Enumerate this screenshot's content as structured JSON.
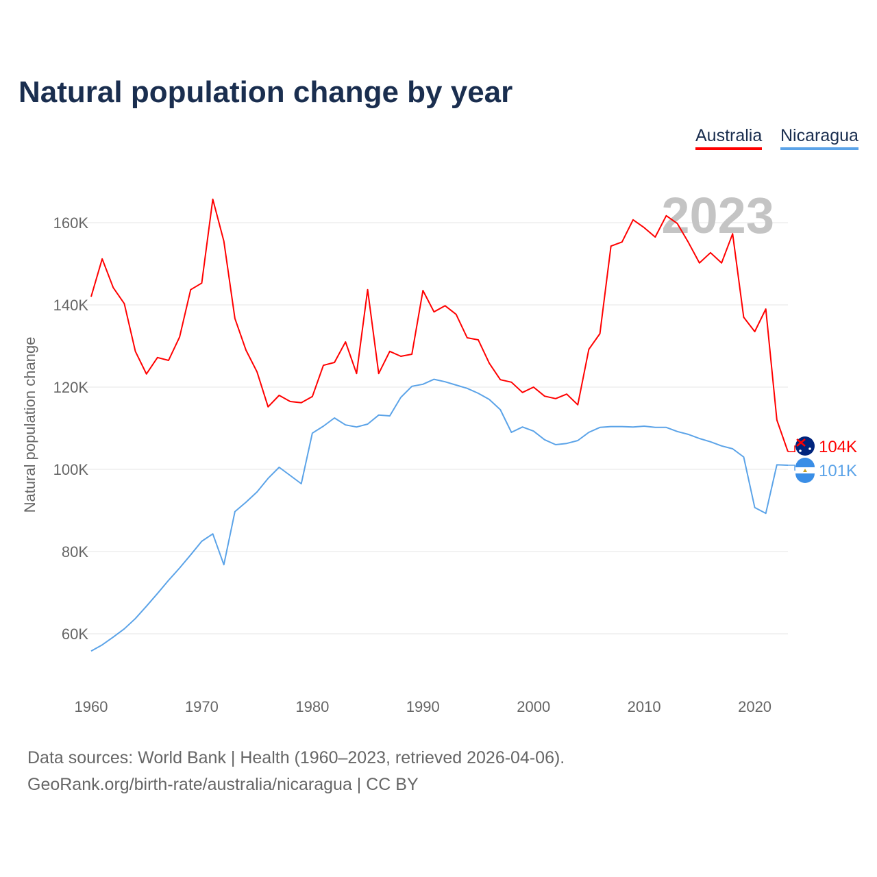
{
  "chart_data": {
    "type": "line",
    "title": "Natural population change by year",
    "xlabel": "",
    "ylabel": "Natural population change",
    "xlim": [
      1960,
      2023
    ],
    "ylim": [
      50000,
      170000
    ],
    "x_ticks": [
      "1960",
      "1970",
      "1980",
      "1990",
      "2000",
      "2010",
      "2020"
    ],
    "y_ticks": [
      {
        "v": 60000,
        "label": "60K"
      },
      {
        "v": 80000,
        "label": "80K"
      },
      {
        "v": 100000,
        "label": "100K"
      },
      {
        "v": 120000,
        "label": "120K"
      },
      {
        "v": 140000,
        "label": "140K"
      },
      {
        "v": 160000,
        "label": "160K"
      }
    ],
    "grid": true,
    "legend_placement": "top-right",
    "year_watermark": "2023",
    "x": [
      1960,
      1961,
      1962,
      1963,
      1964,
      1965,
      1966,
      1967,
      1968,
      1969,
      1970,
      1971,
      1972,
      1973,
      1974,
      1975,
      1976,
      1977,
      1978,
      1979,
      1980,
      1981,
      1982,
      1983,
      1984,
      1985,
      1986,
      1987,
      1988,
      1989,
      1990,
      1991,
      1992,
      1993,
      1994,
      1995,
      1996,
      1997,
      1998,
      1999,
      2000,
      2001,
      2002,
      2003,
      2004,
      2005,
      2006,
      2007,
      2008,
      2009,
      2010,
      2011,
      2012,
      2013,
      2014,
      2015,
      2016,
      2017,
      2018,
      2019,
      2020,
      2021,
      2022,
      2023
    ],
    "series": [
      {
        "name": "Australia",
        "color": "#ff0000",
        "end_label": "104K",
        "values": [
          142000,
          151200,
          144200,
          140300,
          128700,
          123200,
          127200,
          126500,
          132200,
          143700,
          145300,
          165700,
          155500,
          136700,
          129000,
          123700,
          115200,
          118000,
          116500,
          116200,
          117700,
          125300,
          126000,
          131000,
          123300,
          143700,
          123300,
          128700,
          127500,
          128000,
          143500,
          138300,
          139800,
          137700,
          132000,
          131500,
          125800,
          121800,
          121200,
          118700,
          120000,
          117800,
          117200,
          118300,
          115700,
          129200,
          133000,
          154300,
          155300,
          160700,
          158800,
          156500,
          161700,
          159800,
          155200,
          150200,
          152700,
          150200,
          157300,
          137000,
          133500,
          139000,
          112000,
          104300
        ]
      },
      {
        "name": "Nicaragua",
        "color": "#5ba3e8",
        "end_label": "101K",
        "values": [
          55800,
          57300,
          59200,
          61200,
          63700,
          66700,
          69800,
          73000,
          76000,
          79200,
          82500,
          84300,
          76800,
          89700,
          92000,
          94500,
          97800,
          100500,
          98500,
          96500,
          108800,
          110500,
          112500,
          110800,
          110300,
          111000,
          113200,
          113000,
          117500,
          120200,
          120700,
          121900,
          121300,
          120500,
          119700,
          118500,
          117000,
          114500,
          109000,
          110300,
          109300,
          107200,
          106000,
          106300,
          107000,
          109000,
          110200,
          110400,
          110400,
          110300,
          110500,
          110200,
          110200,
          109200,
          108500,
          107500,
          106700,
          105700,
          105000,
          103000,
          90700,
          89300,
          101100,
          101000
        ]
      }
    ]
  },
  "footer": {
    "line1": "Data sources: World Bank | Health (1960–2023, retrieved 2026-04-06).",
    "line2": "GeoRank.org/birth-rate/australia/nicaragua | CC BY"
  }
}
